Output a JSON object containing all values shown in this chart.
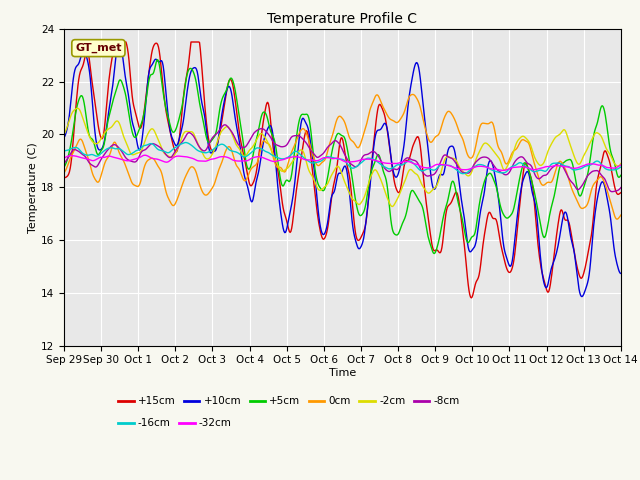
{
  "title": "Temperature Profile C",
  "xlabel": "Time",
  "ylabel": "Temperature (C)",
  "ylim": [
    12,
    24
  ],
  "yticks": [
    12,
    14,
    16,
    18,
    20,
    22,
    24
  ],
  "annotation": "GT_met",
  "background_color": "#e8e8e8",
  "series_order": [
    "+15cm",
    "+10cm",
    "+5cm",
    "0cm",
    "-2cm",
    "-8cm",
    "-16cm",
    "-32cm"
  ],
  "series": {
    "+15cm": {
      "color": "#dd0000",
      "lw": 1.0
    },
    "+10cm": {
      "color": "#0000dd",
      "lw": 1.0
    },
    "+5cm": {
      "color": "#00cc00",
      "lw": 1.0
    },
    "0cm": {
      "color": "#ff9900",
      "lw": 1.0
    },
    "-2cm": {
      "color": "#dddd00",
      "lw": 1.0
    },
    "-8cm": {
      "color": "#aa00aa",
      "lw": 1.0
    },
    "-16cm": {
      "color": "#00cccc",
      "lw": 1.0
    },
    "-32cm": {
      "color": "#ff00ff",
      "lw": 1.0
    }
  },
  "legend_rows": [
    [
      "+15cm",
      "+10cm",
      "+5cm",
      "0cm",
      "-2cm",
      "-8cm"
    ],
    [
      "-16cm",
      "-32cm"
    ]
  ],
  "xtick_labels": [
    "Sep 29",
    "Sep 30",
    "Oct 1",
    "Oct 2",
    "Oct 3",
    "Oct 4",
    "Oct 5",
    "Oct 6",
    "Oct 7",
    "Oct 8",
    "Oct 9",
    "Oct 10",
    "Oct 11",
    "Oct 12",
    "Oct 13",
    "Oct 14"
  ],
  "num_points": 720,
  "seed": 137
}
